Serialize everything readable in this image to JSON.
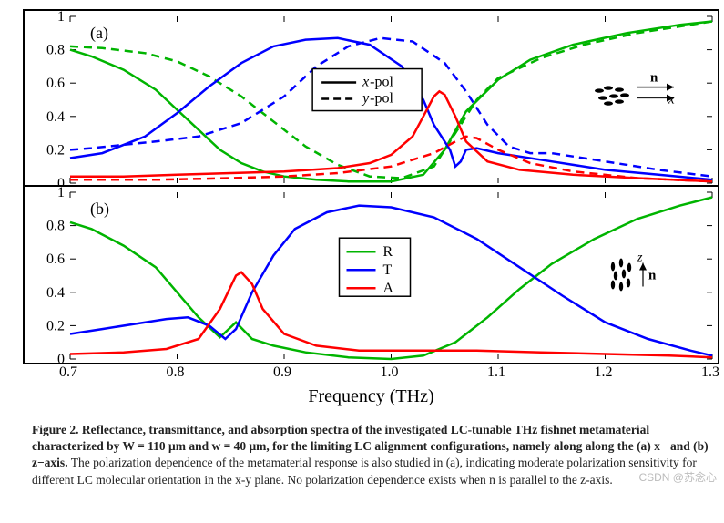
{
  "figure": {
    "xlabel": "Frequency (THz)",
    "xlim": [
      0.7,
      1.3
    ],
    "xtick_step": 0.1,
    "ylim": [
      0,
      1
    ],
    "ytick_step": 0.2,
    "tick_fontsize": 16,
    "label_fontsize": 20,
    "line_width": 2.5,
    "background_color": "#ffffff",
    "border_color": "#000000"
  },
  "watermark": "CSDN @苏念心",
  "panelA": {
    "label": "(a)",
    "inset_direction": "x",
    "legend": {
      "items": [
        {
          "label": "x-pol",
          "style": "solid"
        },
        {
          "label": "y-pol",
          "style": "dash"
        }
      ],
      "font_style": "italic",
      "color": "#000000"
    },
    "colors": {
      "R": "#00b400",
      "T": "#0000ff",
      "A": "#ff0000"
    },
    "series": {
      "R_x": [
        [
          0.7,
          0.8
        ],
        [
          0.72,
          0.76
        ],
        [
          0.75,
          0.68
        ],
        [
          0.78,
          0.56
        ],
        [
          0.8,
          0.44
        ],
        [
          0.82,
          0.32
        ],
        [
          0.84,
          0.2
        ],
        [
          0.86,
          0.12
        ],
        [
          0.88,
          0.07
        ],
        [
          0.9,
          0.04
        ],
        [
          0.93,
          0.02
        ],
        [
          0.96,
          0.01
        ],
        [
          1.0,
          0.01
        ],
        [
          1.03,
          0.05
        ],
        [
          1.05,
          0.2
        ],
        [
          1.07,
          0.43
        ],
        [
          1.1,
          0.62
        ],
        [
          1.13,
          0.74
        ],
        [
          1.17,
          0.83
        ],
        [
          1.22,
          0.9
        ],
        [
          1.27,
          0.95
        ],
        [
          1.3,
          0.97
        ]
      ],
      "R_y": [
        [
          0.7,
          0.82
        ],
        [
          0.73,
          0.81
        ],
        [
          0.77,
          0.78
        ],
        [
          0.8,
          0.73
        ],
        [
          0.83,
          0.64
        ],
        [
          0.86,
          0.52
        ],
        [
          0.89,
          0.37
        ],
        [
          0.92,
          0.22
        ],
        [
          0.95,
          0.11
        ],
        [
          0.98,
          0.04
        ],
        [
          1.01,
          0.03
        ],
        [
          1.04,
          0.1
        ],
        [
          1.06,
          0.3
        ],
        [
          1.08,
          0.5
        ],
        [
          1.1,
          0.63
        ],
        [
          1.14,
          0.75
        ],
        [
          1.18,
          0.83
        ],
        [
          1.23,
          0.9
        ],
        [
          1.3,
          0.97
        ]
      ],
      "T_x": [
        [
          0.7,
          0.15
        ],
        [
          0.73,
          0.18
        ],
        [
          0.77,
          0.28
        ],
        [
          0.8,
          0.42
        ],
        [
          0.83,
          0.58
        ],
        [
          0.86,
          0.72
        ],
        [
          0.89,
          0.82
        ],
        [
          0.92,
          0.86
        ],
        [
          0.95,
          0.87
        ],
        [
          0.98,
          0.83
        ],
        [
          1.01,
          0.7
        ],
        [
          1.03,
          0.5
        ],
        [
          1.04,
          0.35
        ],
        [
          1.05,
          0.25
        ],
        [
          1.055,
          0.2
        ],
        [
          1.06,
          0.1
        ],
        [
          1.065,
          0.13
        ],
        [
          1.07,
          0.2
        ],
        [
          1.08,
          0.21
        ],
        [
          1.1,
          0.18
        ],
        [
          1.15,
          0.13
        ],
        [
          1.2,
          0.08
        ],
        [
          1.25,
          0.05
        ],
        [
          1.3,
          0.02
        ]
      ],
      "T_y": [
        [
          0.7,
          0.2
        ],
        [
          0.72,
          0.21
        ],
        [
          0.75,
          0.23
        ],
        [
          0.78,
          0.25
        ],
        [
          0.82,
          0.28
        ],
        [
          0.86,
          0.36
        ],
        [
          0.9,
          0.52
        ],
        [
          0.93,
          0.7
        ],
        [
          0.96,
          0.82
        ],
        [
          0.99,
          0.87
        ],
        [
          1.02,
          0.85
        ],
        [
          1.05,
          0.72
        ],
        [
          1.07,
          0.55
        ],
        [
          1.09,
          0.35
        ],
        [
          1.11,
          0.22
        ],
        [
          1.13,
          0.18
        ],
        [
          1.15,
          0.18
        ],
        [
          1.17,
          0.16
        ],
        [
          1.2,
          0.13
        ],
        [
          1.25,
          0.08
        ],
        [
          1.3,
          0.04
        ]
      ],
      "A_x": [
        [
          0.7,
          0.04
        ],
        [
          0.75,
          0.04
        ],
        [
          0.8,
          0.05
        ],
        [
          0.85,
          0.06
        ],
        [
          0.9,
          0.07
        ],
        [
          0.95,
          0.09
        ],
        [
          0.98,
          0.12
        ],
        [
          1.0,
          0.17
        ],
        [
          1.02,
          0.28
        ],
        [
          1.03,
          0.4
        ],
        [
          1.04,
          0.52
        ],
        [
          1.045,
          0.55
        ],
        [
          1.05,
          0.53
        ],
        [
          1.06,
          0.4
        ],
        [
          1.07,
          0.25
        ],
        [
          1.09,
          0.13
        ],
        [
          1.12,
          0.08
        ],
        [
          1.17,
          0.05
        ],
        [
          1.23,
          0.03
        ],
        [
          1.3,
          0.01
        ]
      ],
      "A_y": [
        [
          0.7,
          0.02
        ],
        [
          0.78,
          0.02
        ],
        [
          0.85,
          0.03
        ],
        [
          0.9,
          0.04
        ],
        [
          0.95,
          0.06
        ],
        [
          1.0,
          0.1
        ],
        [
          1.04,
          0.18
        ],
        [
          1.06,
          0.25
        ],
        [
          1.07,
          0.28
        ],
        [
          1.08,
          0.27
        ],
        [
          1.1,
          0.2
        ],
        [
          1.13,
          0.12
        ],
        [
          1.17,
          0.07
        ],
        [
          1.23,
          0.03
        ],
        [
          1.3,
          0.01
        ]
      ]
    }
  },
  "panelB": {
    "label": "(b)",
    "inset_direction": "z",
    "legend": {
      "items": [
        {
          "label": "R",
          "color": "#00b400"
        },
        {
          "label": "T",
          "color": "#0000ff"
        },
        {
          "label": "A",
          "color": "#ff0000"
        }
      ]
    },
    "series": {
      "R": [
        [
          0.7,
          0.82
        ],
        [
          0.72,
          0.78
        ],
        [
          0.75,
          0.68
        ],
        [
          0.78,
          0.55
        ],
        [
          0.8,
          0.4
        ],
        [
          0.82,
          0.25
        ],
        [
          0.84,
          0.13
        ],
        [
          0.855,
          0.22
        ],
        [
          0.87,
          0.12
        ],
        [
          0.89,
          0.08
        ],
        [
          0.92,
          0.04
        ],
        [
          0.96,
          0.01
        ],
        [
          1.0,
          0.0
        ],
        [
          1.03,
          0.02
        ],
        [
          1.06,
          0.1
        ],
        [
          1.09,
          0.25
        ],
        [
          1.12,
          0.42
        ],
        [
          1.15,
          0.57
        ],
        [
          1.19,
          0.72
        ],
        [
          1.23,
          0.84
        ],
        [
          1.27,
          0.92
        ],
        [
          1.3,
          0.97
        ]
      ],
      "T": [
        [
          0.7,
          0.15
        ],
        [
          0.73,
          0.18
        ],
        [
          0.76,
          0.21
        ],
        [
          0.79,
          0.24
        ],
        [
          0.81,
          0.25
        ],
        [
          0.83,
          0.2
        ],
        [
          0.845,
          0.12
        ],
        [
          0.855,
          0.18
        ],
        [
          0.87,
          0.4
        ],
        [
          0.89,
          0.62
        ],
        [
          0.91,
          0.78
        ],
        [
          0.94,
          0.88
        ],
        [
          0.97,
          0.92
        ],
        [
          1.0,
          0.91
        ],
        [
          1.04,
          0.85
        ],
        [
          1.08,
          0.72
        ],
        [
          1.12,
          0.55
        ],
        [
          1.16,
          0.38
        ],
        [
          1.2,
          0.22
        ],
        [
          1.24,
          0.12
        ],
        [
          1.28,
          0.05
        ],
        [
          1.3,
          0.02
        ]
      ],
      "A": [
        [
          0.7,
          0.03
        ],
        [
          0.75,
          0.04
        ],
        [
          0.79,
          0.06
        ],
        [
          0.82,
          0.12
        ],
        [
          0.84,
          0.3
        ],
        [
          0.855,
          0.5
        ],
        [
          0.86,
          0.52
        ],
        [
          0.87,
          0.45
        ],
        [
          0.88,
          0.3
        ],
        [
          0.9,
          0.15
        ],
        [
          0.93,
          0.08
        ],
        [
          0.97,
          0.05
        ],
        [
          1.02,
          0.05
        ],
        [
          1.08,
          0.05
        ],
        [
          1.14,
          0.04
        ],
        [
          1.2,
          0.03
        ],
        [
          1.26,
          0.02
        ],
        [
          1.3,
          0.01
        ]
      ]
    }
  },
  "caption": {
    "bold": "Figure 2.  Reflectance, transmittance, and absorption spectra of the investigated LC-tunable THz fishnet metamaterial characterized by W = 110 μm and w = 40 μm, for the limiting LC alignment configurations, namely along along the (a) x− and (b) z−axis.",
    "rest": " The polarization dependence of the metamaterial response is also studied in (a), indicating moderate polarization sensitivity for different LC molecular orientation in the x-y plane. No polarization dependence exists when n is parallel to the z-axis."
  }
}
